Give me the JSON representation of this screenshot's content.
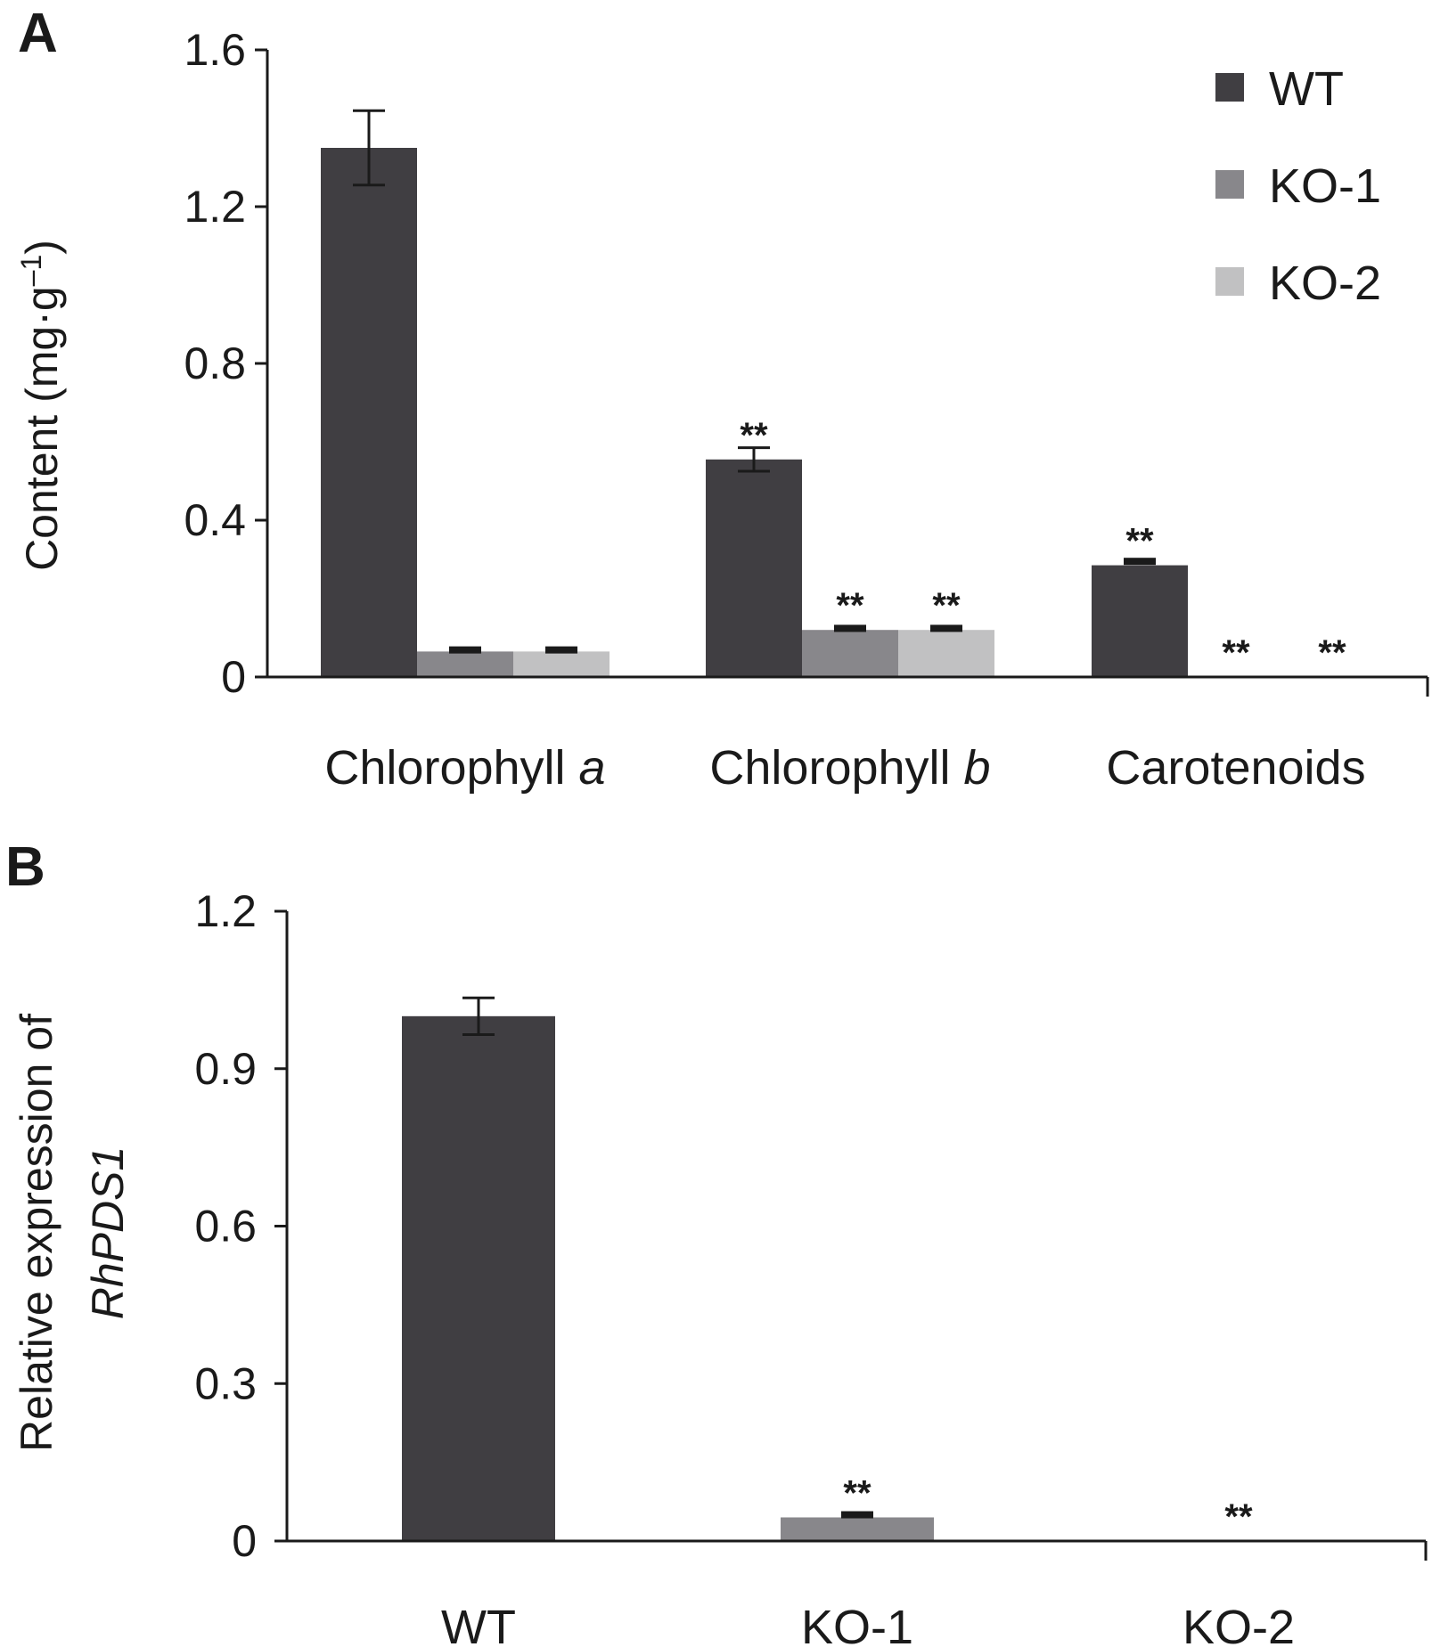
{
  "chart_data": [
    {
      "panel": "A",
      "type": "bar",
      "categories": [
        "Chlorophyll a",
        "Chlorophyll b",
        "Carotenoids"
      ],
      "category_parts": [
        {
          "plain": "Chlorophyll ",
          "italic": "a"
        },
        {
          "plain": "Chlorophyll ",
          "italic": "b"
        },
        {
          "plain": "Carotenoids",
          "italic": ""
        }
      ],
      "series": [
        {
          "name": "WT",
          "color": "#403e42",
          "values": [
            1.35,
            0.555,
            0.285
          ],
          "errors": [
            0.095,
            0.03,
            0.01
          ]
        },
        {
          "name": "KO-1",
          "color": "#88878b",
          "values": [
            0.065,
            0.12,
            0.0
          ],
          "errors": [
            0.004,
            0.004,
            0.0
          ]
        },
        {
          "name": "KO-2",
          "color": "#c1c1c2",
          "values": [
            0.065,
            0.12,
            0.0
          ],
          "errors": [
            0.004,
            0.004,
            0.0
          ]
        }
      ],
      "significance": [
        [
          "",
          "**",
          "**"
        ],
        [
          "",
          "**",
          "**"
        ],
        [
          "",
          "**",
          "**"
        ]
      ],
      "ylabel": "Content (mg·g⁻¹)",
      "ylabel_plain": "Content (mg·g",
      "ylabel_sup": "–1",
      "ylabel_close": ")",
      "ylim": [
        0,
        1.6
      ],
      "yticks": [
        "0",
        "0.4",
        "0.8",
        "1.2",
        "1.6"
      ],
      "ytick_values": [
        0,
        0.4,
        0.8,
        1.2,
        1.6
      ],
      "legend_position": "top-right",
      "grid": false
    },
    {
      "panel": "B",
      "type": "bar",
      "categories": [
        "WT",
        "KO-1",
        "KO-2"
      ],
      "series": [
        {
          "name": "",
          "color": "#403e42",
          "values": [
            1.0,
            0.045,
            0.0
          ],
          "errors": [
            0.035,
            0.005,
            0.0
          ]
        }
      ],
      "bar_colors": [
        "#403e42",
        "#88878b",
        "#c1c1c2"
      ],
      "significance": [
        "",
        "**",
        "**"
      ],
      "ylabel_line1": "Relative expression of",
      "ylabel_line2": "RhPDS1",
      "ylim": [
        0,
        1.2
      ],
      "yticks": [
        "0",
        "0.3",
        "0.6",
        "0.9",
        "1.2"
      ],
      "ytick_values": [
        0,
        0.3,
        0.6,
        0.9,
        1.2
      ],
      "grid": false
    }
  ]
}
